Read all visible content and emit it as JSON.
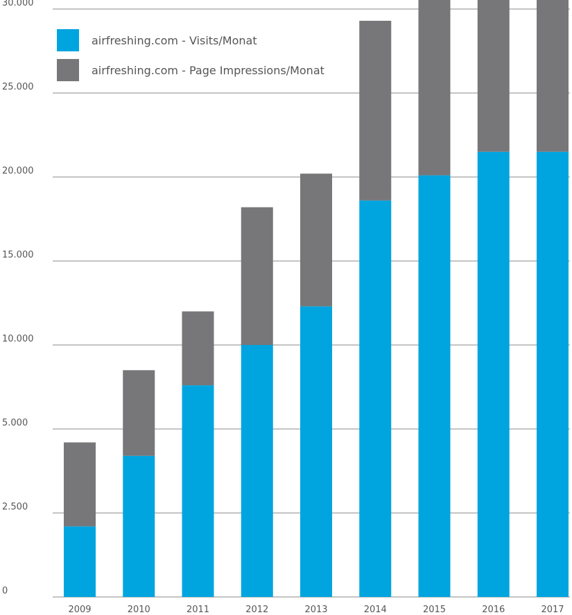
{
  "chart_data": {
    "type": "bar",
    "stacked": true,
    "categories": [
      "2009",
      "2010",
      "2011",
      "2012",
      "2013",
      "2014",
      "2015",
      "2016",
      "2017"
    ],
    "y_ticks": [
      0,
      2500,
      5000,
      10000,
      15000,
      20000,
      25000,
      30000
    ],
    "y_tick_labels": [
      "0",
      "2.500",
      "5.000",
      "10.000",
      "15.000",
      "20.000",
      "25.000",
      "30.000"
    ],
    "ylim": [
      0,
      31500
    ],
    "y_scale": "piecewise-linear: 0–5.000 occupies the same height per step as each 5.000 step above",
    "grid": true,
    "legend_position": "top-left",
    "series": [
      {
        "name": "airfreshing.com - Visits/Monat",
        "color": "#00A5DF",
        "values": [
          2100,
          4200,
          7600,
          10000,
          12300,
          18600,
          20100,
          21500,
          21500
        ]
      },
      {
        "name": "airfreshing.com - Page Impressions/Monat",
        "color": "#77777A",
        "values": [
          2500,
          4300,
          4400,
          8200,
          7900,
          10700,
          11500,
          10000,
          10000
        ]
      }
    ],
    "title": "",
    "xlabel": "",
    "ylabel": ""
  }
}
